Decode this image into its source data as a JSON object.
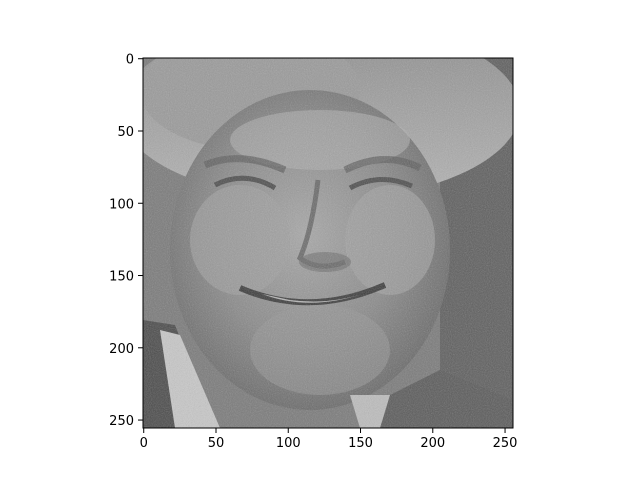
{
  "chart_data": {
    "type": "heatmap",
    "colormap": "grayscale",
    "content": "noisy grayscale photograph of a smiling face",
    "x_ticks": [
      "0",
      "50",
      "100",
      "150",
      "200",
      "250"
    ],
    "y_ticks": [
      "0",
      "50",
      "100",
      "150",
      "200",
      "250"
    ],
    "xlim": [
      -0.5,
      255.5
    ],
    "ylim": [
      255.5,
      -0.5
    ],
    "grid": false
  },
  "colors": {
    "axis": "#000000",
    "background": "#ffffff"
  }
}
